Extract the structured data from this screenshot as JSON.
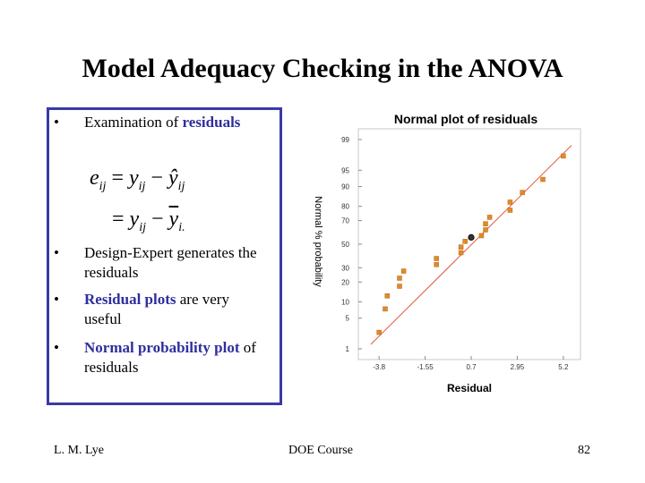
{
  "slide": {
    "title": "Model Adequacy Checking in the ANOVA",
    "bullets": [
      {
        "dot": "•",
        "text": "Examination of ",
        "highlight": "residuals",
        "after": ""
      },
      {
        "dot": "•",
        "text": "Design-Expert generates the residuals",
        "highlight": "",
        "after": ""
      },
      {
        "dot": "•",
        "text": "",
        "highlight": "Residual plots",
        "after": " are very useful"
      },
      {
        "dot": "•",
        "text": "",
        "highlight": "Normal probability plot",
        "after": " of residuals"
      }
    ],
    "equation": {
      "line1_lhs": "e",
      "line1_lhs_sub": "ij",
      "op": "=",
      "y": "y",
      "y_sub": "ij",
      "minus": "−",
      "yhat": "ŷ",
      "yhat_sub": "ij",
      "line2_op": "=",
      "y2": "y",
      "y2_sub": "ij",
      "ybar": "y",
      "ybar_sub": "i."
    },
    "footer": {
      "left": "L. M. Lye",
      "center": "DOE  Course",
      "right": "82"
    }
  },
  "chart_data": {
    "type": "scatter",
    "title": "Normal plot of residuals",
    "xlabel": "Residual",
    "ylabel": "Normal % probability",
    "x_ticks": [
      "-3.8",
      "-1.55",
      "0.7",
      "2.95",
      "5.2"
    ],
    "y_ticks": [
      "1",
      "5",
      "10",
      "20",
      "30",
      "50",
      "70",
      "80",
      "90",
      "95",
      "99"
    ],
    "xlim": [
      -4.2,
      5.6
    ],
    "y_scale": "normal-probability",
    "marker_color": "#e08a2c",
    "line_color": "#e05a3a",
    "points": [
      {
        "x": -3.8,
        "p": 2.5
      },
      {
        "x": -3.5,
        "p": 7.5
      },
      {
        "x": -3.4,
        "p": 12.5
      },
      {
        "x": -2.8,
        "p": 17.5
      },
      {
        "x": -2.8,
        "p": 22.5
      },
      {
        "x": -2.6,
        "p": 27.5
      },
      {
        "x": -1.0,
        "p": 32.5
      },
      {
        "x": -1.0,
        "p": 37.5
      },
      {
        "x": 0.2,
        "p": 42.5
      },
      {
        "x": 0.2,
        "p": 47.5
      },
      {
        "x": 0.4,
        "p": 52.5
      },
      {
        "x": 1.2,
        "p": 57.5
      },
      {
        "x": 1.4,
        "p": 62.5
      },
      {
        "x": 1.4,
        "p": 67.5
      },
      {
        "x": 1.6,
        "p": 72.5
      },
      {
        "x": 2.6,
        "p": 77.5
      },
      {
        "x": 2.6,
        "p": 82.5
      },
      {
        "x": 3.2,
        "p": 87.5
      },
      {
        "x": 4.2,
        "p": 92.5
      },
      {
        "x": 5.2,
        "p": 97.5
      }
    ],
    "highlighted_point": {
      "x": 0.7,
      "p": 56.0
    },
    "fit_line": {
      "x": [
        -4.2,
        5.6
      ],
      "p": [
        1.3,
        98.6
      ]
    }
  }
}
